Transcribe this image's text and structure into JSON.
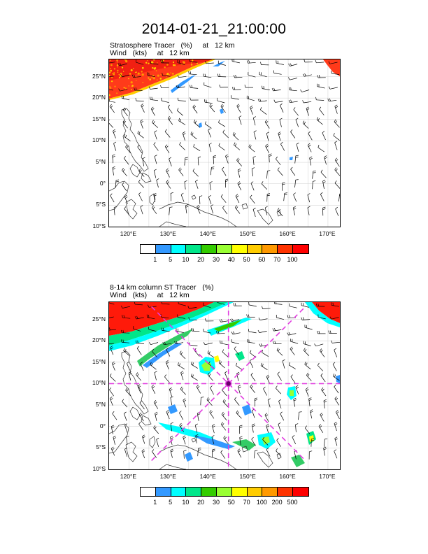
{
  "title": "2014-01-21_21:00:00",
  "panels": [
    {
      "subtitle_line1": "Stratosphere Tracer   (%)     at   12 km",
      "subtitle_line2": "Wind   (kts)     at   12 km",
      "lat_labels": [
        "25°N",
        "20°N",
        "15°N",
        "10°N",
        "5°N",
        "0°",
        "5°S",
        "10°S"
      ],
      "lon_labels": [
        "120°E",
        "130°E",
        "140°E",
        "150°E",
        "160°E",
        "170°E"
      ],
      "colorbar": {
        "colors": [
          "#ffffff",
          "#3399ff",
          "#00ffff",
          "#00e68a",
          "#33cc00",
          "#99ff33",
          "#ffff00",
          "#ffcc00",
          "#ff9900",
          "#ff3300",
          "#ff0000"
        ],
        "labels": [
          "1",
          "5",
          "10",
          "20",
          "30",
          "40",
          "50",
          "60",
          "70",
          "100"
        ]
      }
    },
    {
      "subtitle_line1": "8-14 km column ST Tracer   (%)",
      "subtitle_line2": "Wind   (kts)     at   12 km",
      "lat_labels": [
        "25°N",
        "20°N",
        "15°N",
        "10°N",
        "5°N",
        "0°",
        "5°S",
        "10°S"
      ],
      "lon_labels": [
        "120°E",
        "130°E",
        "140°E",
        "150°E",
        "160°E",
        "170°E"
      ],
      "colorbar": {
        "colors": [
          "#ffffff",
          "#3399ff",
          "#00ffff",
          "#00e68a",
          "#33cc00",
          "#99ff33",
          "#ffff00",
          "#ffcc00",
          "#ff9900",
          "#ff3300",
          "#ff0000"
        ],
        "labels": [
          "1",
          "5",
          "10",
          "20",
          "30",
          "50",
          "70",
          "100",
          "200",
          "500"
        ]
      }
    }
  ],
  "map_extent": {
    "lon_range": [
      115,
      173
    ],
    "lat_range": [
      -10,
      29
    ]
  },
  "cross_center": {
    "lon": 145,
    "lat": 10
  }
}
